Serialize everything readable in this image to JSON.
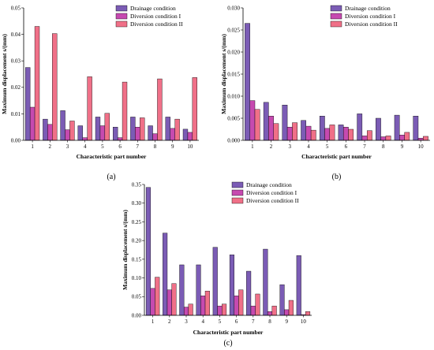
{
  "chart_data": [
    {
      "type": "bar",
      "panel_label": "(a)",
      "categories": [
        "1",
        "2",
        "3",
        "4",
        "5",
        "6",
        "7",
        "8",
        "9",
        "10"
      ],
      "series": [
        {
          "name": "Drainage condition",
          "color": "#7b5cb5",
          "values": [
            0.0275,
            0.008,
            0.0112,
            0.0055,
            0.0088,
            0.005,
            0.0088,
            0.0055,
            0.0088,
            0.0042
          ]
        },
        {
          "name": "Diversion condition I",
          "color": "#c64ab0",
          "values": [
            0.0125,
            0.006,
            0.004,
            0.001,
            0.0055,
            0.001,
            0.005,
            0.0025,
            0.0045,
            0.003
          ]
        },
        {
          "name": "Diversion condition II",
          "color": "#f07088",
          "values": [
            0.043,
            0.0403,
            0.0073,
            0.024,
            0.0102,
            0.022,
            0.0085,
            0.0232,
            0.008,
            0.0237
          ]
        }
      ],
      "yticks": [
        "0.00",
        "0.01",
        "0.02",
        "0.03",
        "0.04",
        "0.05"
      ],
      "ylim": [
        0,
        0.05
      ],
      "xlabel": "Characteristic part number",
      "ylabel": "Maximum displacement s/(mm)",
      "legend_position": "top-right"
    },
    {
      "type": "bar",
      "panel_label": "(b)",
      "categories": [
        "1",
        "2",
        "3",
        "4",
        "5",
        "6",
        "7",
        "8",
        "9",
        "10"
      ],
      "series": [
        {
          "name": "Drainage condition",
          "color": "#7b5cb5",
          "values": [
            0.0265,
            0.0086,
            0.008,
            0.0045,
            0.0055,
            0.0035,
            0.006,
            0.005,
            0.0057,
            0.0055
          ]
        },
        {
          "name": "Diversion condition I",
          "color": "#c64ab0",
          "values": [
            0.009,
            0.0055,
            0.003,
            0.0032,
            0.0027,
            0.003,
            0.001,
            0.0008,
            0.0012,
            0.0005
          ]
        },
        {
          "name": "Diversion condition II",
          "color": "#f07088",
          "values": [
            0.007,
            0.0038,
            0.004,
            0.0023,
            0.0035,
            0.0025,
            0.0022,
            0.001,
            0.0018,
            0.0009
          ]
        }
      ],
      "yticks": [
        "0.000",
        "0.005",
        "0.010",
        "0.015",
        "0.020",
        "0.025",
        "0.030"
      ],
      "ylim": [
        0,
        0.03
      ],
      "xlabel": "Characteristic part number",
      "ylabel": "Maximum displacement s/(mm)",
      "legend_position": "top-right"
    },
    {
      "type": "bar",
      "panel_label": "(c)",
      "categories": [
        "1",
        "2",
        "3",
        "4",
        "5",
        "6",
        "7",
        "8",
        "9",
        "10"
      ],
      "series": [
        {
          "name": "Drainage condition",
          "color": "#7b5cb5",
          "values": [
            0.342,
            0.22,
            0.135,
            0.135,
            0.182,
            0.162,
            0.118,
            0.177,
            0.082,
            0.16
          ]
        },
        {
          "name": "Diversion condition I",
          "color": "#c64ab0",
          "values": [
            0.072,
            0.068,
            0.022,
            0.052,
            0.025,
            0.052,
            0.025,
            0.01,
            0.015,
            0.002
          ]
        },
        {
          "name": "Diversion condition II",
          "color": "#f07088",
          "values": [
            0.102,
            0.085,
            0.03,
            0.065,
            0.03,
            0.068,
            0.057,
            0.025,
            0.04,
            0.01
          ]
        }
      ],
      "yticks": [
        "0.00",
        "0.05",
        "0.10",
        "0.15",
        "0.20",
        "0.25",
        "0.30",
        "0.35"
      ],
      "ylim": [
        0,
        0.35
      ],
      "xlabel": "Characteristic part number",
      "ylabel": "Maximum displacement s/(mm)",
      "legend_position": "top-right"
    }
  ]
}
